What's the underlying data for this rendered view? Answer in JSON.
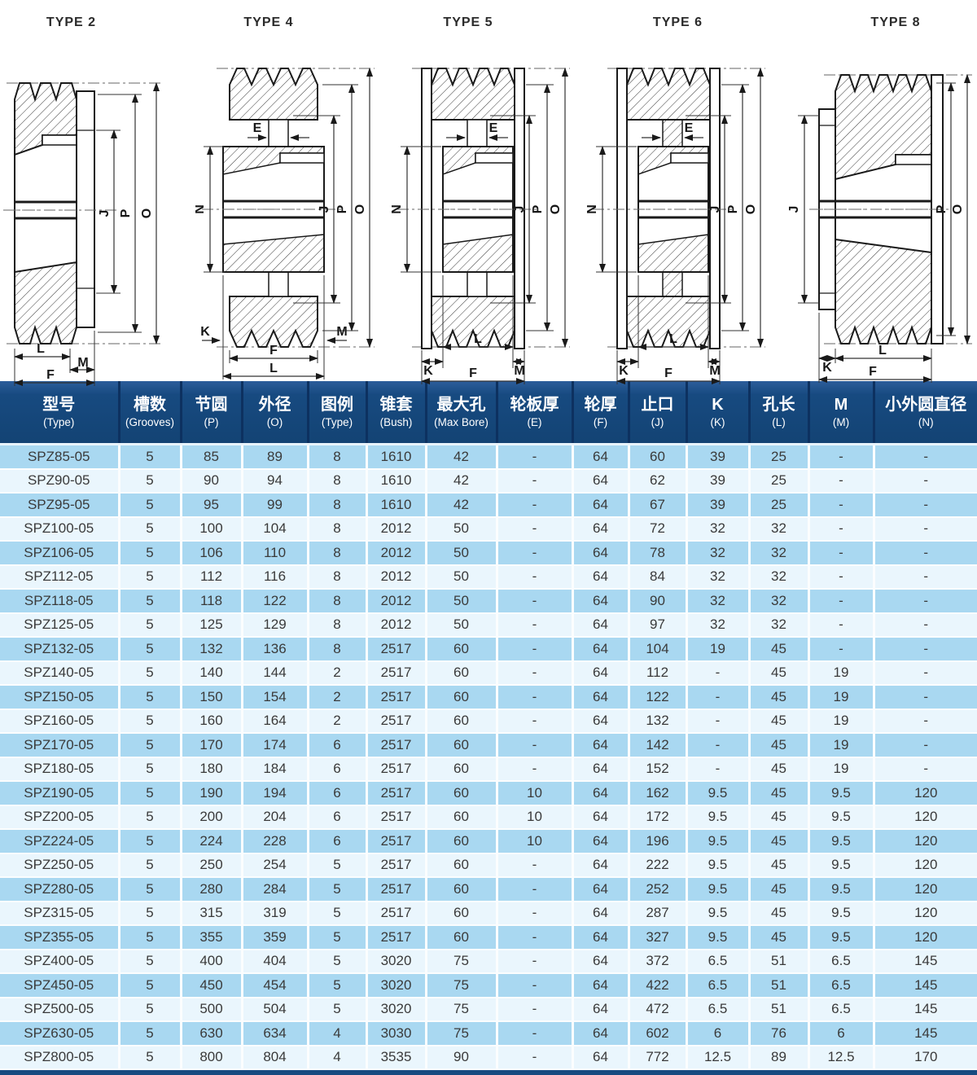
{
  "diagrams": [
    {
      "title": "TYPE 2",
      "dims": {
        "J": "J",
        "P": "P",
        "O": "O",
        "L": "L",
        "M": "M",
        "F": "F"
      }
    },
    {
      "title": "TYPE 4",
      "dims": {
        "E": "E",
        "N": "N",
        "J": "J",
        "P": "P",
        "O": "O",
        "K": "K",
        "M": "M",
        "F": "F",
        "L": "L"
      }
    },
    {
      "title": "TYPE 5",
      "dims": {
        "E": "E",
        "N": "N",
        "J": "J",
        "P": "P",
        "O": "O",
        "L": "L",
        "K": "K",
        "M": "M",
        "F": "F"
      }
    },
    {
      "title": "TYPE 6",
      "dims": {
        "E": "E",
        "N": "N",
        "J": "J",
        "P": "P",
        "O": "O",
        "L": "L",
        "K": "K",
        "M": "M",
        "F": "F"
      }
    },
    {
      "title": "TYPE 8",
      "dims": {
        "J": "J",
        "P": "P",
        "O": "O",
        "K": "K",
        "L": "L",
        "F": "F"
      }
    }
  ],
  "table": {
    "headers": [
      {
        "zh": "型号",
        "en": "(Type)"
      },
      {
        "zh": "槽数",
        "en": "(Grooves)"
      },
      {
        "zh": "节圆",
        "en": "(P)"
      },
      {
        "zh": "外径",
        "en": "(O)"
      },
      {
        "zh": "图例",
        "en": "(Type)"
      },
      {
        "zh": "锥套",
        "en": "(Bush)"
      },
      {
        "zh": "最大孔",
        "en": "(Max Bore)"
      },
      {
        "zh": "轮板厚",
        "en": "(E)"
      },
      {
        "zh": "轮厚",
        "en": "(F)"
      },
      {
        "zh": "止口",
        "en": "(J)"
      },
      {
        "zh": "K",
        "en": "(K)"
      },
      {
        "zh": "孔长",
        "en": "(L)"
      },
      {
        "zh": "M",
        "en": "(M)"
      },
      {
        "zh": "小外圆直径",
        "en": "(N)"
      }
    ],
    "rows": [
      [
        "SPZ85-05",
        "5",
        "85",
        "89",
        "8",
        "1610",
        "42",
        "-",
        "64",
        "60",
        "39",
        "25",
        "-",
        "-"
      ],
      [
        "SPZ90-05",
        "5",
        "90",
        "94",
        "8",
        "1610",
        "42",
        "-",
        "64",
        "62",
        "39",
        "25",
        "-",
        "-"
      ],
      [
        "SPZ95-05",
        "5",
        "95",
        "99",
        "8",
        "1610",
        "42",
        "-",
        "64",
        "67",
        "39",
        "25",
        "-",
        "-"
      ],
      [
        "SPZ100-05",
        "5",
        "100",
        "104",
        "8",
        "2012",
        "50",
        "-",
        "64",
        "72",
        "32",
        "32",
        "-",
        "-"
      ],
      [
        "SPZ106-05",
        "5",
        "106",
        "110",
        "8",
        "2012",
        "50",
        "-",
        "64",
        "78",
        "32",
        "32",
        "-",
        "-"
      ],
      [
        "SPZ112-05",
        "5",
        "112",
        "116",
        "8",
        "2012",
        "50",
        "-",
        "64",
        "84",
        "32",
        "32",
        "-",
        "-"
      ],
      [
        "SPZ118-05",
        "5",
        "118",
        "122",
        "8",
        "2012",
        "50",
        "-",
        "64",
        "90",
        "32",
        "32",
        "-",
        "-"
      ],
      [
        "SPZ125-05",
        "5",
        "125",
        "129",
        "8",
        "2012",
        "50",
        "-",
        "64",
        "97",
        "32",
        "32",
        "-",
        "-"
      ],
      [
        "SPZ132-05",
        "5",
        "132",
        "136",
        "8",
        "2517",
        "60",
        "-",
        "64",
        "104",
        "19",
        "45",
        "-",
        "-"
      ],
      [
        "SPZ140-05",
        "5",
        "140",
        "144",
        "2",
        "2517",
        "60",
        "-",
        "64",
        "112",
        "-",
        "45",
        "19",
        "-"
      ],
      [
        "SPZ150-05",
        "5",
        "150",
        "154",
        "2",
        "2517",
        "60",
        "-",
        "64",
        "122",
        "-",
        "45",
        "19",
        "-"
      ],
      [
        "SPZ160-05",
        "5",
        "160",
        "164",
        "2",
        "2517",
        "60",
        "-",
        "64",
        "132",
        "-",
        "45",
        "19",
        "-"
      ],
      [
        "SPZ170-05",
        "5",
        "170",
        "174",
        "6",
        "2517",
        "60",
        "-",
        "64",
        "142",
        "-",
        "45",
        "19",
        "-"
      ],
      [
        "SPZ180-05",
        "5",
        "180",
        "184",
        "6",
        "2517",
        "60",
        "-",
        "64",
        "152",
        "-",
        "45",
        "19",
        "-"
      ],
      [
        "SPZ190-05",
        "5",
        "190",
        "194",
        "6",
        "2517",
        "60",
        "10",
        "64",
        "162",
        "9.5",
        "45",
        "9.5",
        "120"
      ],
      [
        "SPZ200-05",
        "5",
        "200",
        "204",
        "6",
        "2517",
        "60",
        "10",
        "64",
        "172",
        "9.5",
        "45",
        "9.5",
        "120"
      ],
      [
        "SPZ224-05",
        "5",
        "224",
        "228",
        "6",
        "2517",
        "60",
        "10",
        "64",
        "196",
        "9.5",
        "45",
        "9.5",
        "120"
      ],
      [
        "SPZ250-05",
        "5",
        "250",
        "254",
        "5",
        "2517",
        "60",
        "-",
        "64",
        "222",
        "9.5",
        "45",
        "9.5",
        "120"
      ],
      [
        "SPZ280-05",
        "5",
        "280",
        "284",
        "5",
        "2517",
        "60",
        "-",
        "64",
        "252",
        "9.5",
        "45",
        "9.5",
        "120"
      ],
      [
        "SPZ315-05",
        "5",
        "315",
        "319",
        "5",
        "2517",
        "60",
        "-",
        "64",
        "287",
        "9.5",
        "45",
        "9.5",
        "120"
      ],
      [
        "SPZ355-05",
        "5",
        "355",
        "359",
        "5",
        "2517",
        "60",
        "-",
        "64",
        "327",
        "9.5",
        "45",
        "9.5",
        "120"
      ],
      [
        "SPZ400-05",
        "5",
        "400",
        "404",
        "5",
        "3020",
        "75",
        "-",
        "64",
        "372",
        "6.5",
        "51",
        "6.5",
        "145"
      ],
      [
        "SPZ450-05",
        "5",
        "450",
        "454",
        "5",
        "3020",
        "75",
        "-",
        "64",
        "422",
        "6.5",
        "51",
        "6.5",
        "145"
      ],
      [
        "SPZ500-05",
        "5",
        "500",
        "504",
        "5",
        "3020",
        "75",
        "-",
        "64",
        "472",
        "6.5",
        "51",
        "6.5",
        "145"
      ],
      [
        "SPZ630-05",
        "5",
        "630",
        "634",
        "4",
        "3030",
        "75",
        "-",
        "64",
        "602",
        "6",
        "76",
        "6",
        "145"
      ],
      [
        "SPZ800-05",
        "5",
        "800",
        "804",
        "4",
        "3535",
        "90",
        "-",
        "64",
        "772",
        "12.5",
        "89",
        "12.5",
        "170"
      ]
    ]
  },
  "colors": {
    "header_bg": "#174a80",
    "header_divider": "#0d3160",
    "row_odd": "#a9d8f1",
    "row_even": "#eaf6fd",
    "body_text": "#3a3a3a",
    "bottom_bar": "#174a80"
  }
}
